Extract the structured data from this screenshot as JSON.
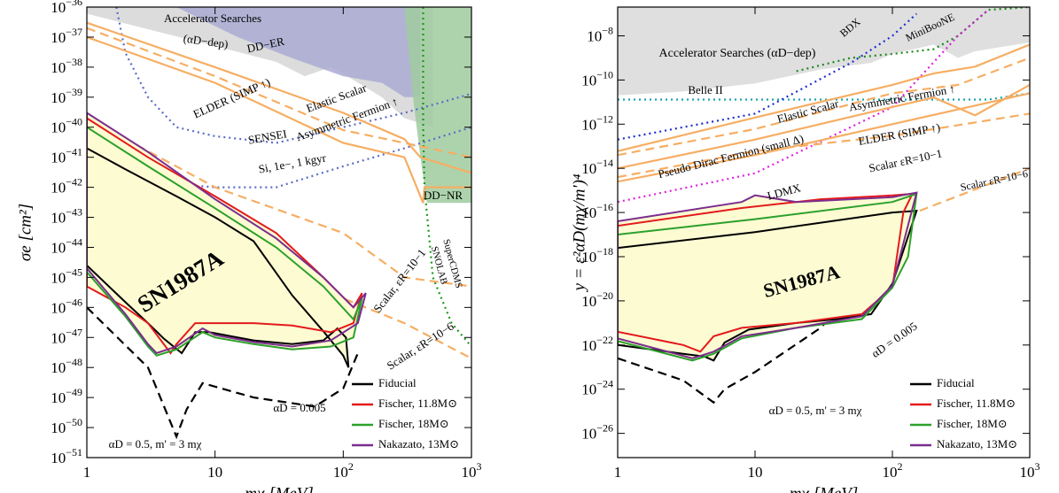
{
  "chart_data": [
    {
      "type": "line",
      "log_x": true,
      "log_y": true,
      "x_label": "mχ [MeV]",
      "y_label": "σe [cm²]",
      "xlim": [
        1,
        1000
      ],
      "ylim": [
        1e-51,
        1e-36
      ],
      "xticks": [
        1,
        10,
        {
          "value": 100,
          "label": "102"
        },
        {
          "value": 1000,
          "label": "103"
        }
      ],
      "yticks": [
        {
          "value": 1e-36,
          "label": "10−36"
        },
        {
          "value": 1e-37,
          "label": "10−37"
        },
        {
          "value": 1e-38,
          "label": "10−38"
        },
        {
          "value": 1e-39,
          "label": "10−39"
        },
        {
          "value": 1e-40,
          "label": "10−40"
        },
        {
          "value": 1e-41,
          "label": "10−41"
        },
        {
          "value": 1e-42,
          "label": "10−42"
        },
        {
          "value": 1e-43,
          "label": "10−43"
        },
        {
          "value": 1e-44,
          "label": "10−44"
        },
        {
          "value": 1e-45,
          "label": "10−45"
        },
        {
          "value": 1e-46,
          "label": "10−46"
        },
        {
          "value": 1e-47,
          "label": "10−47"
        },
        {
          "value": 1e-48,
          "label": "10−48"
        },
        {
          "value": 1e-49,
          "label": "10−49"
        },
        {
          "value": 1e-50,
          "label": "10−50"
        },
        {
          "value": 1e-51,
          "label": "10−51"
        }
      ],
      "legend": "bottom-right",
      "contour_fill": "#fcfbd2",
      "curves": [
        {
          "style": "fill",
          "color": "#d6d6d6",
          "x": [
            1,
            1,
            10,
            30,
            50,
            80,
            100,
            200,
            300,
            500,
            500
          ],
          "values": [
            1e-36,
            6e-37,
            5e-38,
            1.5e-38,
            5e-39,
            1e-38,
            6e-39,
            1e-39,
            2e-40,
            1e-40,
            1e-36
          ]
        },
        {
          "style": "fill",
          "color": "#aaabd2",
          "x": [
            5,
            15,
            40,
            100,
            200,
            300,
            400,
            400
          ],
          "values": [
            1e-36,
            1e-37,
            2e-38,
            5e-39,
            3e-39,
            1e-39,
            1e-39,
            1e-36
          ]
        },
        {
          "style": "fill",
          "color": "#9fcb9f",
          "x": [
            300,
            350,
            400,
            450,
            1000,
            1000
          ],
          "values": [
            1e-36,
            1e-39,
            1e-41,
            3e-43,
            3e-43,
            1e-36
          ]
        },
        {
          "style": "dotted",
          "color": "#5b6bc7",
          "x": [
            1.7,
            2,
            3,
            5,
            10,
            30,
            100,
            300,
            1000
          ],
          "values": [
            1e-36,
            3e-38,
            1e-39,
            1e-40,
            5e-41,
            3e-41,
            1e-40,
            3e-40,
            1.3e-39
          ]
        },
        {
          "style": "dotted",
          "color": "#5b6bc7",
          "x": [
            1.3,
            3,
            10,
            30,
            100,
            300,
            1000
          ],
          "values": [
            1e-41,
            1.5e-42,
            1e-42,
            1e-42,
            5e-42,
            2e-41,
            1e-40
          ]
        },
        {
          "style": "dotted",
          "color": "#1a9a1a",
          "x": [
            420,
            420,
            430,
            500,
            700,
            1000
          ],
          "values": [
            1e-36,
            1e-40,
            1e-42,
            1e-45,
            3e-47,
            5e-48
          ]
        },
        {
          "style": "solid",
          "color": "#f6ae63",
          "x": [
            1,
            10,
            100,
            300,
            400,
            1000
          ],
          "values": [
            3e-37,
            1e-38,
            3e-40,
            4e-41,
            1e-41,
            3e-42
          ]
        },
        {
          "style": "solid",
          "color": "#f6ae63",
          "x": [
            1,
            10,
            100,
            300,
            420,
            430,
            1000
          ],
          "values": [
            1e-37,
            3e-39,
            3e-41,
            1e-41,
            3e-43,
            1e-42,
            1e-42
          ]
        },
        {
          "style": "dashed",
          "color": "#f6ae63",
          "x": [
            1,
            10,
            100,
            300,
            1000
          ],
          "values": [
            2e-37,
            5e-39,
            8e-41,
            3e-41,
            1e-41
          ]
        },
        {
          "style": "dashed",
          "color": "#f6ae63",
          "x": [
            1,
            10,
            100,
            300,
            1000
          ],
          "values": [
            2e-40,
            1e-42,
            3e-44,
            1e-45,
            5e-46
          ]
        },
        {
          "style": "dashed",
          "color": "#f6ae63",
          "x": [
            1,
            10,
            100,
            300,
            1000
          ],
          "values": [
            1e-42,
            3e-45,
            2e-46,
            3e-47,
            2e-48
          ]
        },
        {
          "style": "dashed",
          "color": "#000000",
          "x": [
            1,
            3,
            5,
            6,
            8,
            20,
            60,
            100,
            130
          ],
          "values": [
            1e-46,
            1e-48,
            5e-51,
            4e-50,
            3e-49,
            1e-49,
            5e-50,
            2e-49,
            3e-48
          ]
        }
      ],
      "series": [
        {
          "name": "Fiducial",
          "color": "#000000",
          "x": [
            1,
            2,
            5,
            10,
            20,
            40,
            70,
            100,
            110,
            105,
            90,
            70,
            40,
            20,
            9,
            7,
            5.5,
            4,
            3,
            2,
            1
          ],
          "values": [
            2e-41,
            4e-42,
            5e-43,
            1e-43,
            1.6e-44,
            2.5e-46,
            1.6e-47,
            2.5e-48,
            1e-48,
            1e-47,
            2e-47,
            8e-48,
            6e-48,
            8e-48,
            1.5e-47,
            1.5e-47,
            3e-48,
            9e-48,
            3e-47,
            1.5e-46,
            2.5e-45
          ]
        },
        {
          "name": "Fischer, 11.8M⊙",
          "color": "#e41a1c",
          "x": [
            1,
            3,
            10,
            30,
            70,
            120,
            140,
            120,
            80,
            40,
            20,
            10,
            7,
            5,
            4.5,
            3,
            2,
            1
          ],
          "values": [
            2e-40,
            1e-41,
            5e-43,
            3e-44,
            1e-45,
            1e-46,
            3e-46,
            3e-47,
            1.5e-47,
            2.5e-47,
            3e-47,
            3e-47,
            3e-47,
            6e-48,
            3e-48,
            3e-47,
            1e-46,
            5e-46
          ]
        },
        {
          "name": "Fischer, 18M⊙",
          "color": "#2ca02c",
          "x": [
            1,
            3,
            10,
            30,
            70,
            120,
            140,
            120,
            80,
            40,
            20,
            10,
            8,
            5,
            3.5,
            3,
            2,
            1
          ],
          "values": [
            1e-40,
            5e-42,
            2e-43,
            1e-44,
            5e-46,
            4e-47,
            2e-46,
            1e-47,
            5e-48,
            4e-48,
            6e-48,
            1e-47,
            1.5e-47,
            4e-48,
            2.5e-48,
            5e-48,
            5e-47,
            1.5e-45
          ]
        },
        {
          "name": "Nakazato, 13M⊙",
          "color": "#7b2d8e",
          "x": [
            1,
            3,
            10,
            30,
            70,
            120,
            150,
            130,
            80,
            40,
            20,
            10,
            8,
            5,
            3.5,
            3,
            2,
            1
          ],
          "values": [
            3e-40,
            1.5e-41,
            4e-43,
            2e-44,
            1e-45,
            1e-46,
            3e-46,
            3e-47,
            8e-48,
            5e-48,
            7e-48,
            1.2e-47,
            2e-47,
            5e-48,
            3e-48,
            6e-48,
            6e-47,
            2e-45
          ]
        }
      ],
      "annotations": [
        "SN1987A",
        "Accelerator Searches",
        "(αD−dep)",
        "DD−ER",
        "DD−NR",
        "Elastic Scalar",
        "Asymmetric Fermion ↑",
        "ELDER (SIMP ↑)",
        "SENSEI",
        "Si, 1e−, 1 kgyr",
        "Scalar, εR=10−1",
        "Scalar, εR=10−6",
        "SuperCDMS",
        "SNOLAB",
        "αD = 0.005",
        "αD = 0.5, m' = 3 mχ"
      ]
    },
    {
      "type": "line",
      "log_x": true,
      "log_y": true,
      "x_label": "mχ [MeV]",
      "y_label": "y = ε²αD(mχ/m')⁴",
      "xlim": [
        1,
        1000
      ],
      "ylim": [
        8e-28,
        2e-07
      ],
      "xticks": [
        1,
        10,
        {
          "value": 100,
          "label": "102"
        },
        {
          "value": 1000,
          "label": "103"
        }
      ],
      "yticks": [
        {
          "value": 1e-08,
          "label": "10−8"
        },
        {
          "value": 1e-10,
          "label": "10−10"
        },
        {
          "value": 1e-12,
          "label": "10−12"
        },
        {
          "value": 1e-14,
          "label": "10−14"
        },
        {
          "value": 1e-16,
          "label": "10−16"
        },
        {
          "value": 1e-18,
          "label": "10−18"
        },
        {
          "value": 1e-20,
          "label": "10−20"
        },
        {
          "value": 1e-22,
          "label": "10−22"
        },
        {
          "value": 1e-24,
          "label": "10−24"
        },
        {
          "value": 1e-26,
          "label": "10−26"
        }
      ],
      "legend": "bottom-right",
      "contour_fill": "#fcfbd2",
      "curves": [
        {
          "style": "fill",
          "color": "#d9d9d9",
          "x": [
            1,
            1,
            3,
            10,
            30,
            70,
            100,
            200,
            300,
            400,
            1000,
            1000
          ],
          "values": [
            2e-07,
            2e-11,
            3e-11,
            7e-11,
            3e-10,
            6e-10,
            1.5e-09,
            4e-09,
            1e-09,
            2e-09,
            5e-09,
            2e-07
          ]
        },
        {
          "style": "dotted",
          "color": "#17a2b0",
          "x": [
            1,
            10,
            100,
            500,
            1000
          ],
          "values": [
            1.3e-11,
            1.3e-11,
            1.3e-11,
            1.3e-11,
            2.5e-11
          ]
        },
        {
          "style": "dotted",
          "color": "#1f2fd0",
          "x": [
            1,
            10,
            50,
            100,
            150
          ],
          "values": [
            2e-13,
            3e-12,
            6e-10,
            1e-08,
            1e-07
          ]
        },
        {
          "style": "dotted",
          "color": "#1a8a1a",
          "x": [
            20,
            50,
            100,
            200,
            300,
            500,
            1000
          ],
          "values": [
            2.5e-10,
            1e-09,
            1.5e-09,
            2.5e-09,
            1e-08,
            1.5e-07,
            2e-07
          ]
        },
        {
          "style": "dotted",
          "color": "#e020e0",
          "x": [
            1,
            10,
            100,
            300,
            500
          ],
          "values": [
            3e-16,
            6e-15,
            6e-12,
            1e-08,
            1.5e-07
          ]
        },
        {
          "style": "solid",
          "color": "#f6ae63",
          "x": [
            1,
            10,
            100,
            200,
            400,
            1000
          ],
          "values": [
            6e-14,
            2e-12,
            6e-11,
            2e-10,
            4e-10,
            4e-09
          ]
        },
        {
          "style": "solid",
          "color": "#f6ae63",
          "x": [
            1,
            10,
            100,
            200,
            400,
            1000
          ],
          "values": [
            1e-14,
            2e-13,
            6e-12,
            1.6e-11,
            2.5e-12,
            6e-11
          ]
        },
        {
          "style": "solid",
          "color": "#f6ae63",
          "x": [
            1,
            10,
            100,
            1000
          ],
          "values": [
            2.5e-15,
            4e-14,
            1e-12,
            2.5e-11
          ]
        },
        {
          "style": "dashed",
          "color": "#f6ae63",
          "x": [
            1,
            10,
            100,
            300,
            1000
          ],
          "values": [
            4e-14,
            6e-13,
            2.5e-11,
            6e-11,
            1e-09
          ]
        },
        {
          "style": "dashed",
          "color": "#f6ae63",
          "x": [
            1,
            10,
            100,
            1000
          ],
          "values": [
            4e-15,
            6e-14,
            3e-13,
            3e-12
          ]
        },
        {
          "style": "dashed",
          "color": "#f6ae63",
          "x": [
            1,
            10,
            100,
            1000
          ],
          "values": [
            4e-20,
            1e-18,
            4e-17,
            1e-14
          ]
        },
        {
          "style": "dashed",
          "color": "#000000",
          "x": [
            1,
            3,
            5,
            6,
            10,
            30,
            60,
            100,
            150
          ],
          "values": [
            2.5e-23,
            2.5e-24,
            2.5e-25,
            1e-24,
            6e-24,
            6e-22,
            6e-20,
            2.5e-18,
            1.2e-16
          ]
        }
      ],
      "series": [
        {
          "name": "Fiducial",
          "color": "#000000",
          "x": [
            1,
            10,
            100,
            150,
            100,
            70,
            40,
            20,
            9,
            6,
            5,
            4.3,
            3,
            1
          ],
          "values": [
            2.5e-18,
            1.3e-17,
            1e-16,
            1.2e-16,
            6e-20,
            2.5e-21,
            1.5e-21,
            1e-21,
            5e-22,
            1.3e-22,
            2e-23,
            3e-23,
            4e-23,
            1e-22
          ]
        },
        {
          "name": "Fischer, 11.8M⊙",
          "color": "#e41a1c",
          "x": [
            1,
            8,
            30,
            100,
            140,
            120,
            100,
            60,
            20,
            8,
            5,
            4,
            3,
            1
          ],
          "values": [
            2.5e-17,
            1.6e-16,
            4e-16,
            6e-16,
            7e-16,
            1e-16,
            4e-20,
            2.5e-21,
            1e-21,
            6e-22,
            2.5e-22,
            5e-23,
            1e-22,
            4e-22
          ]
        },
        {
          "name": "Fischer, 18M⊙",
          "color": "#2ca02c",
          "x": [
            1,
            10,
            100,
            150,
            130,
            100,
            60,
            20,
            8,
            5,
            3.5,
            1
          ],
          "values": [
            1e-17,
            5e-17,
            3e-16,
            7e-16,
            1e-18,
            4e-20,
            1.5e-21,
            6e-22,
            2e-22,
            4e-23,
            2e-23,
            1.5e-22
          ]
        },
        {
          "name": "Nakazato, 13M⊙",
          "color": "#7b2d8e",
          "x": [
            1,
            8,
            10,
            20,
            100,
            150,
            100,
            60,
            20,
            8,
            5,
            3.5,
            1
          ],
          "values": [
            4e-17,
            3e-16,
            6e-16,
            3e-16,
            5e-16,
            8e-16,
            5e-20,
            2e-21,
            6e-22,
            2.5e-22,
            5e-23,
            2.5e-23,
            2e-22
          ]
        }
      ],
      "annotations": [
        "SN1987A",
        "Accelerator Searches (αD−dep)",
        "BDX",
        "MiniBooNE",
        "Belle II",
        "Elastic Scalar",
        "Asymmetric Fermion ↑",
        "Pseudo Dirac Fermion (small Δ)",
        "ELDER (SIMP ↑)",
        "Scalar εR=10−1",
        "Scalar εR=10−6",
        "LDMX",
        "αD = 0.005",
        "αD = 0.5, m' = 3 mχ"
      ]
    }
  ]
}
